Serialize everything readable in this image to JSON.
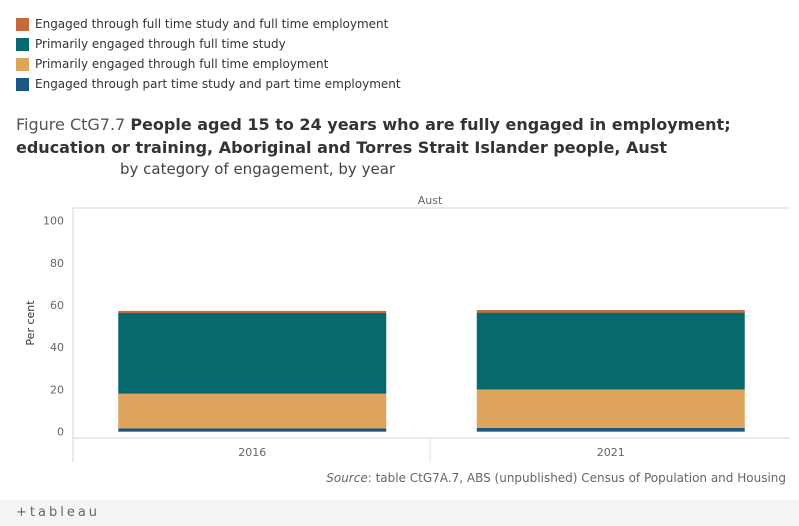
{
  "legend": [
    {
      "label": "Engaged through full time study and full time employment",
      "color": "#c8683f"
    },
    {
      "label": "Primarily engaged through full time study",
      "color": "#05696d"
    },
    {
      "label": "Primarily engaged through full time employment",
      "color": "#dea45c"
    },
    {
      "label": "Engaged through part time study and part time employment",
      "color": "#1b5880"
    }
  ],
  "title": {
    "lead": "Figure CtG7.7",
    "main": "People aged 15 to 24 years who are fully engaged in employment; education or training, Aboriginal and Torres Strait Islander people, Aust",
    "subtitle": "by category of engagement, by year"
  },
  "source": {
    "label": "Source",
    "text": ": table CtG7A.7, ABS (unpublished) Census of Population and Housing"
  },
  "footer": {
    "logo": "+tableau"
  },
  "chart_data": {
    "type": "bar",
    "stacked": true,
    "panel_title": "Aust",
    "ylabel": "Per cent",
    "ylim": [
      -3,
      105
    ],
    "yticks": [
      0,
      20,
      40,
      60,
      80,
      100
    ],
    "categories": [
      "2016",
      "2021"
    ],
    "series": [
      {
        "name": "Engaged through part time study and part time employment",
        "color": "#1b5880",
        "values": [
          1.5,
          1.8
        ]
      },
      {
        "name": "Primarily engaged through full time employment",
        "color": "#dea45c",
        "values": [
          16.5,
          18.2
        ]
      },
      {
        "name": "Primarily engaged through full time study",
        "color": "#05696d",
        "values": [
          38.2,
          36.4
        ]
      },
      {
        "name": "Engaged through full time study and full time employment",
        "color": "#c8683f",
        "values": [
          1.0,
          1.2
        ]
      }
    ]
  }
}
